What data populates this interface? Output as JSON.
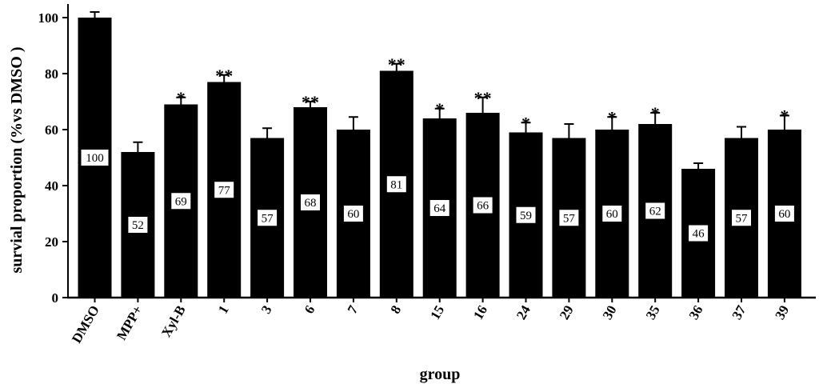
{
  "chart_data": {
    "type": "bar",
    "xlabel": "group",
    "ylabel": "survial proportion (%vs DMSO )",
    "ylim": [
      0,
      105
    ],
    "yticks": [
      "0",
      "20",
      "40",
      "60",
      "80",
      "100"
    ],
    "categories": [
      "DMSO",
      "MPP+",
      "Xyl-B",
      "1",
      "3",
      "6",
      "7",
      "8",
      "15",
      "16",
      "24",
      "29",
      "30",
      "35",
      "36",
      "37",
      "39"
    ],
    "values": [
      100,
      52,
      69,
      77,
      57,
      68,
      60,
      81,
      64,
      66,
      59,
      57,
      60,
      62,
      46,
      57,
      60
    ],
    "data_labels": [
      "100",
      "52",
      "69",
      "77",
      "57",
      "68",
      "60",
      "81",
      "64",
      "66",
      "59",
      "57",
      "60",
      "62",
      "46",
      "57",
      "60"
    ],
    "errors": [
      2,
      3.5,
      2.5,
      2.5,
      3.5,
      2,
      4.5,
      2.5,
      3.5,
      5.5,
      3.5,
      5,
      4.5,
      4,
      2,
      4,
      5
    ],
    "significance": [
      "",
      "",
      "*",
      "**",
      "",
      "**",
      "",
      "**",
      "*",
      "**",
      "*",
      "",
      "*",
      "*",
      "",
      "",
      "*"
    ],
    "bar_color": "#000000",
    "grid": false
  }
}
